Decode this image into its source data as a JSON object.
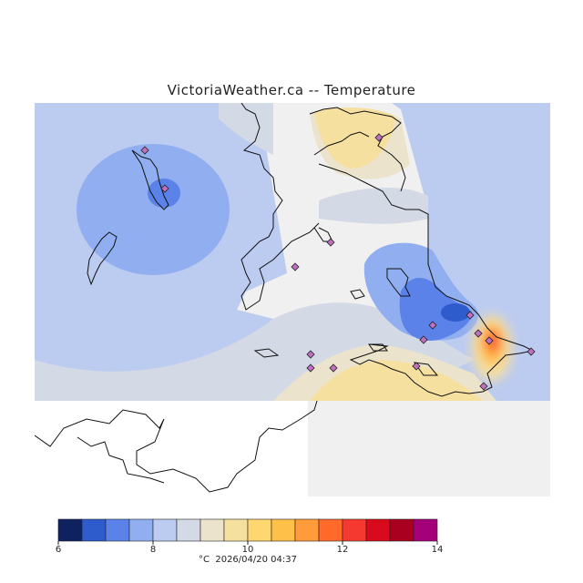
{
  "title": "VictoriaWeather.ca -- Temperature",
  "colorbar": {
    "tick_labels": [
      "6",
      "8",
      "10",
      "12",
      "14"
    ],
    "colors": [
      "#0e2260",
      "#2f5ccc",
      "#5a82e8",
      "#90aef0",
      "#bccbf0",
      "#d4d9e6",
      "#ece3cc",
      "#f6e0a0",
      "#ffd770",
      "#ffc04a",
      "#ff9b3a",
      "#ff6a2a",
      "#f53830",
      "#d80a1c",
      "#a90020",
      "#a4007a"
    ]
  },
  "footer": {
    "unit": "°C",
    "timestamp": "2026/04/20 04:37"
  },
  "colors": {
    "land": "#f0f0f0",
    "coast": "#111111",
    "station_fill": "#c070c0"
  }
}
